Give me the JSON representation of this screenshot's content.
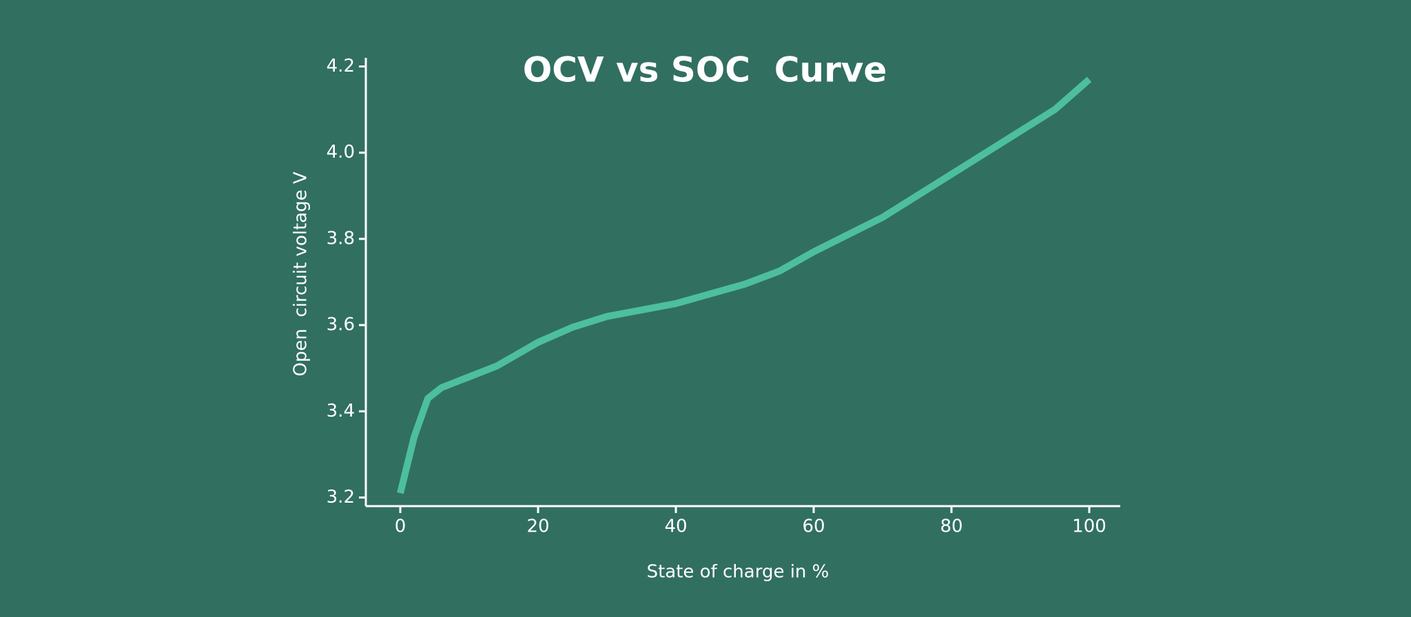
{
  "chart_data": {
    "type": "line",
    "title": "OCV vs SOC  Curve",
    "x_label": "State of charge in %",
    "y_label": "Open  circuit voltage V",
    "x": [
      0,
      2,
      4,
      6,
      10,
      14,
      20,
      25,
      30,
      40,
      50,
      55,
      60,
      65,
      70,
      80,
      90,
      95,
      100
    ],
    "series": [
      {
        "name": "OCV",
        "color": "#4dbf9c",
        "values": [
          3.21,
          3.34,
          3.43,
          3.455,
          3.48,
          3.505,
          3.56,
          3.595,
          3.62,
          3.65,
          3.695,
          3.725,
          3.77,
          3.81,
          3.85,
          3.95,
          4.05,
          4.1,
          4.17
        ]
      }
    ],
    "xlim": [
      -5,
      104.5
    ],
    "ylim": [
      3.18,
      4.22
    ],
    "xticks": [
      0,
      20,
      40,
      60,
      80,
      100
    ],
    "yticks": [
      3.2,
      3.4,
      3.6,
      3.8,
      {
        "value": 4,
        "label": "4.0"
      },
      4.2
    ]
  }
}
